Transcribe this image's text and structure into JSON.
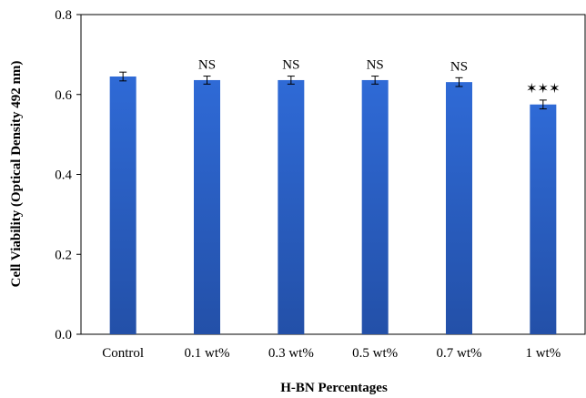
{
  "chart_data": {
    "type": "bar",
    "title": "",
    "xlabel": "H-BN Percentages",
    "ylabel": "Cell Viability (Optical Density 492 nm)",
    "categories": [
      "Control",
      "0.1 wt%",
      "0.3 wt%",
      "0.5 wt%",
      "0.7 wt%",
      "1 wt%"
    ],
    "values": [
      0.645,
      0.636,
      0.636,
      0.636,
      0.631,
      0.575
    ],
    "errors": [
      0.011,
      0.01,
      0.01,
      0.01,
      0.011,
      0.011
    ],
    "annotations": [
      "",
      "NS",
      "NS",
      "NS",
      "NS",
      "✶✶✶"
    ],
    "ylim": [
      0,
      0.8
    ],
    "yticks": [
      "0.0",
      "0.2",
      "0.4",
      "0.6",
      "0.8"
    ],
    "grid": false,
    "legend": "none",
    "bar_color": "#2b62c9"
  }
}
